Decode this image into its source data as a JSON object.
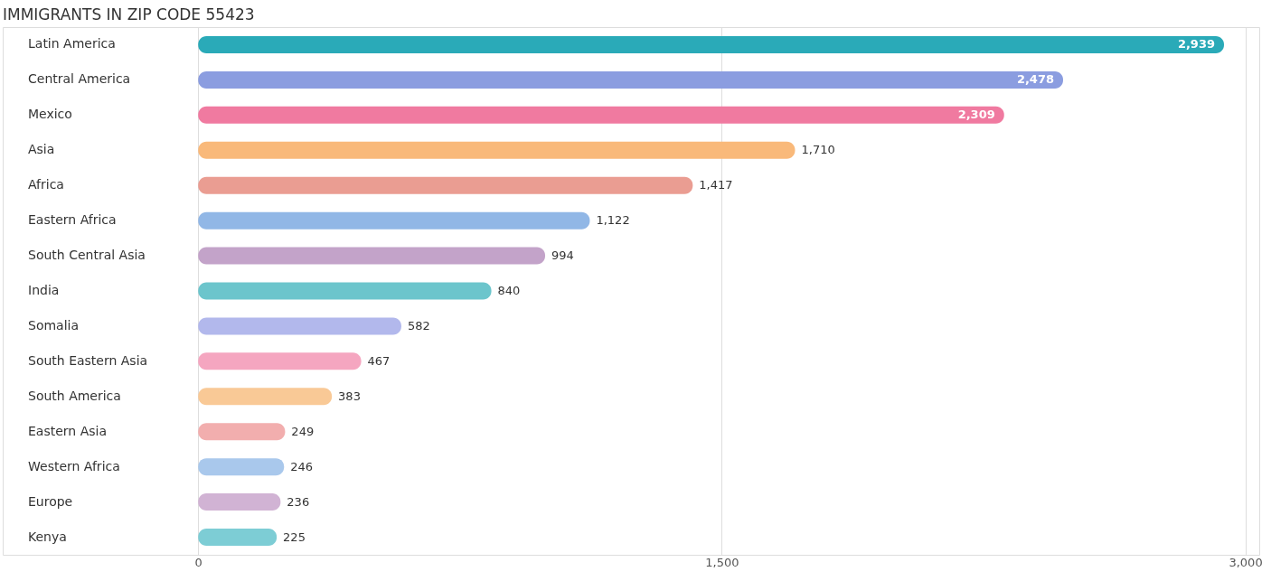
{
  "chart_data": {
    "type": "bar",
    "orientation": "horizontal",
    "title": "IMMIGRANTS IN ZIP CODE 55423",
    "categories": [
      "Latin America",
      "Central America",
      "Mexico",
      "Asia",
      "Africa",
      "Eastern Africa",
      "South Central Asia",
      "India",
      "Somalia",
      "South Eastern Asia",
      "South America",
      "Eastern Asia",
      "Western Africa",
      "Europe",
      "Kenya"
    ],
    "values": [
      2939,
      2478,
      2309,
      1710,
      1417,
      1122,
      994,
      840,
      582,
      467,
      383,
      249,
      246,
      236,
      225
    ],
    "colors": [
      "#2aaab8",
      "#8b9de0",
      "#f07aa0",
      "#f9b97a",
      "#ea9d92",
      "#91b7e6",
      "#c3a3c9",
      "#6cc5cc",
      "#b2b8ec",
      "#f5a6c0",
      "#f9c996",
      "#f2aeae",
      "#a9c8ec",
      "#d1b3d4",
      "#7dcdd5"
    ],
    "xlim": [
      -560,
      3040
    ],
    "xticks": [
      0,
      {
        "value": 1500,
        "label": "1,500"
      },
      {
        "value": 3000,
        "label": "3,000"
      }
    ],
    "value_labels": [
      "2,939",
      "2,478",
      "2,309",
      "1,710",
      "1,417",
      "1,122",
      "994",
      "840",
      "582",
      "467",
      "383",
      "249",
      "246",
      "236",
      "225"
    ],
    "grid": "x",
    "tick_labels": "x"
  }
}
